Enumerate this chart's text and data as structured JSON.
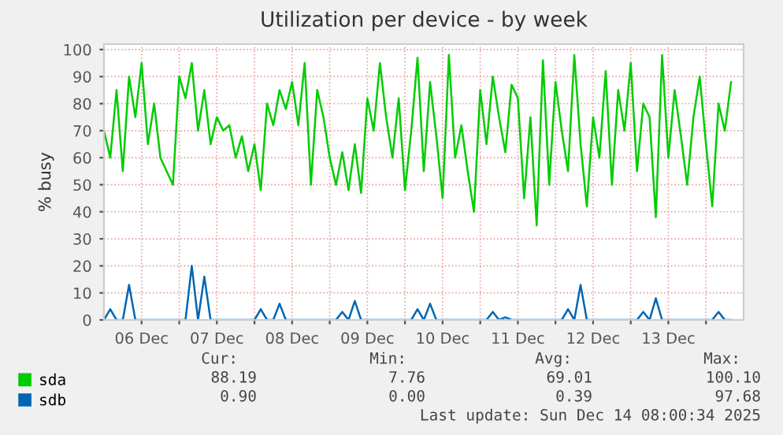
{
  "chart_data": {
    "type": "line",
    "title": "Utilization per device - by week",
    "ylabel": "% busy",
    "x": [
      "2025-12-06T00:00",
      "2025-12-06T02:00",
      "2025-12-06T04:00",
      "2025-12-06T06:00",
      "2025-12-06T08:00",
      "2025-12-06T10:00",
      "2025-12-06T12:00",
      "2025-12-06T14:00",
      "2025-12-06T16:00",
      "2025-12-06T18:00",
      "2025-12-06T20:00",
      "2025-12-06T22:00",
      "2025-12-07T00:00",
      "2025-12-07T02:00",
      "2025-12-07T04:00",
      "2025-12-07T06:00",
      "2025-12-07T08:00",
      "2025-12-07T10:00",
      "2025-12-07T12:00",
      "2025-12-07T14:00",
      "2025-12-07T16:00",
      "2025-12-07T18:00",
      "2025-12-07T20:00",
      "2025-12-07T22:00",
      "2025-12-08T00:00",
      "2025-12-08T02:00",
      "2025-12-08T04:00",
      "2025-12-08T06:00",
      "2025-12-08T08:00",
      "2025-12-08T10:00",
      "2025-12-08T12:00",
      "2025-12-08T14:00",
      "2025-12-08T16:00",
      "2025-12-08T18:00",
      "2025-12-08T20:00",
      "2025-12-08T22:00",
      "2025-12-09T00:00",
      "2025-12-09T02:00",
      "2025-12-09T04:00",
      "2025-12-09T06:00",
      "2025-12-09T08:00",
      "2025-12-09T10:00",
      "2025-12-09T12:00",
      "2025-12-09T14:00",
      "2025-12-09T16:00",
      "2025-12-09T18:00",
      "2025-12-09T20:00",
      "2025-12-09T22:00",
      "2025-12-10T00:00",
      "2025-12-10T02:00",
      "2025-12-10T04:00",
      "2025-12-10T06:00",
      "2025-12-10T08:00",
      "2025-12-10T10:00",
      "2025-12-10T12:00",
      "2025-12-10T14:00",
      "2025-12-10T16:00",
      "2025-12-10T18:00",
      "2025-12-10T20:00",
      "2025-12-10T22:00",
      "2025-12-11T00:00",
      "2025-12-11T02:00",
      "2025-12-11T04:00",
      "2025-12-11T06:00",
      "2025-12-11T08:00",
      "2025-12-11T10:00",
      "2025-12-11T12:00",
      "2025-12-11T14:00",
      "2025-12-11T16:00",
      "2025-12-11T18:00",
      "2025-12-11T20:00",
      "2025-12-11T22:00",
      "2025-12-12T00:00",
      "2025-12-12T02:00",
      "2025-12-12T04:00",
      "2025-12-12T06:00",
      "2025-12-12T08:00",
      "2025-12-12T10:00",
      "2025-12-12T12:00",
      "2025-12-12T14:00",
      "2025-12-12T16:00",
      "2025-12-12T18:00",
      "2025-12-12T20:00",
      "2025-12-12T22:00",
      "2025-12-13T00:00",
      "2025-12-13T02:00",
      "2025-12-13T04:00",
      "2025-12-13T06:00",
      "2025-12-13T08:00",
      "2025-12-13T10:00",
      "2025-12-13T12:00",
      "2025-12-13T14:00",
      "2025-12-13T16:00",
      "2025-12-13T18:00",
      "2025-12-13T20:00",
      "2025-12-13T22:00",
      "2025-12-14T00:00",
      "2025-12-14T02:00",
      "2025-12-14T04:00",
      "2025-12-14T06:00",
      "2025-12-14T08:00"
    ],
    "series": [
      {
        "name": "sda",
        "color": "#00cc00",
        "values": [
          70,
          60,
          85,
          55,
          90,
          75,
          95,
          65,
          80,
          60,
          55,
          50,
          90,
          82,
          95,
          70,
          85,
          65,
          75,
          70,
          72,
          60,
          68,
          55,
          65,
          48,
          80,
          72,
          85,
          78,
          88,
          72,
          95,
          50,
          85,
          75,
          60,
          50,
          62,
          48,
          65,
          47,
          82,
          70,
          95,
          75,
          60,
          82,
          48,
          70,
          97,
          55,
          88,
          68,
          45,
          98,
          60,
          72,
          55,
          40,
          85,
          65,
          90,
          75,
          62,
          87,
          82,
          45,
          75,
          35,
          96,
          50,
          88,
          70,
          55,
          98,
          65,
          42,
          75,
          60,
          92,
          50,
          85,
          70,
          95,
          55,
          80,
          75,
          38,
          98,
          60,
          85,
          68,
          50,
          75,
          90,
          65,
          42,
          80,
          70,
          88
        ]
      },
      {
        "name": "sdb",
        "color": "#0066b3",
        "values": [
          0,
          4,
          0,
          0,
          13,
          0,
          0,
          0,
          0,
          0,
          0,
          0,
          0,
          0,
          20,
          0,
          16,
          0,
          0,
          0,
          0,
          0,
          0,
          0,
          0,
          4,
          0,
          0,
          6,
          0,
          0,
          0,
          0,
          0,
          0,
          0,
          0,
          0,
          3,
          0,
          7,
          0,
          0,
          0,
          0,
          0,
          0,
          0,
          0,
          0,
          4,
          0,
          6,
          0,
          0,
          0,
          0,
          0,
          0,
          0,
          0,
          0,
          3,
          0,
          1,
          0,
          0,
          0,
          0,
          0,
          0,
          0,
          0,
          0,
          4,
          0,
          13,
          0,
          0,
          0,
          0,
          0,
          0,
          0,
          0,
          0,
          3,
          0,
          8,
          0,
          0,
          0,
          0,
          0,
          0,
          0,
          0,
          0,
          3,
          0,
          0
        ]
      }
    ],
    "xlim": [
      "2025-12-06T00:00",
      "2025-12-14T12:00"
    ],
    "xticks": [
      {
        "value": "2025-12-06T12:00",
        "label": "06 Dec"
      },
      {
        "value": "2025-12-07T00:00",
        "label": null
      },
      {
        "value": "2025-12-07T12:00",
        "label": "07 Dec"
      },
      {
        "value": "2025-12-08T00:00",
        "label": null
      },
      {
        "value": "2025-12-08T12:00",
        "label": "08 Dec"
      },
      {
        "value": "2025-12-09T00:00",
        "label": null
      },
      {
        "value": "2025-12-09T12:00",
        "label": "09 Dec"
      },
      {
        "value": "2025-12-10T00:00",
        "label": null
      },
      {
        "value": "2025-12-10T12:00",
        "label": "10 Dec"
      },
      {
        "value": "2025-12-11T00:00",
        "label": null
      },
      {
        "value": "2025-12-11T12:00",
        "label": "11 Dec"
      },
      {
        "value": "2025-12-12T00:00",
        "label": null
      },
      {
        "value": "2025-12-12T12:00",
        "label": "12 Dec"
      },
      {
        "value": "2025-12-13T00:00",
        "label": null
      },
      {
        "value": "2025-12-13T12:00",
        "label": "13 Dec"
      },
      {
        "value": "2025-12-14T00:00",
        "label": null
      }
    ],
    "ylim": [
      0,
      102
    ],
    "yticks": [
      0,
      10,
      20,
      30,
      40,
      50,
      60,
      70,
      80,
      90,
      100
    ],
    "grid": true,
    "legend": "bottom left",
    "marker": "none",
    "line_style": "solid",
    "annotations": [
      "Cur:",
      "Min:",
      "Avg:",
      "Max:",
      "88.19",
      "7.76",
      "69.01",
      "100.10",
      "0.90",
      "0.00",
      "0.39",
      "97.68",
      "Last update: Sun Dec 14 08:00:34 2025"
    ]
  }
}
